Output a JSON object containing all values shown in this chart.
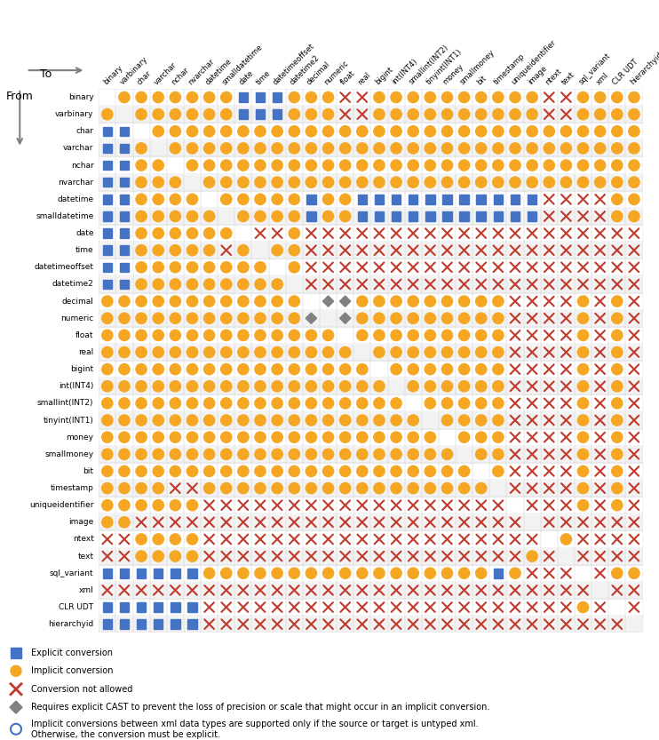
{
  "rows": [
    "binary",
    "varbinary",
    "char",
    "varchar",
    "nchar",
    "nvarchar",
    "datetime",
    "smalldatetime",
    "date",
    "time",
    "datetimeoffset",
    "datetime2",
    "decimal",
    "numeric",
    "float",
    "real",
    "bigint",
    "int(INT4)",
    "smallint(INT2)",
    "tinyint(INT1)",
    "money",
    "smallmoney",
    "bit",
    "timestamp",
    "uniqueidentifier",
    "image",
    "ntext",
    "text",
    "sql_variant",
    "xml",
    "CLR UDT",
    "hierarchyid"
  ],
  "cols": [
    "binary",
    "varbinary",
    "char",
    "varchar",
    "nchar",
    "nvarchar",
    "datetime",
    "smalldatetime",
    "date",
    "time",
    "datetimeoffset",
    "datetime2",
    "decimal",
    "numeric",
    "float",
    "real",
    "bigint",
    "int(INT4)",
    "smallint(INT2)",
    "tinyint(INT1)",
    "money",
    "smallmoney",
    "bit",
    "timestamp",
    "uniqueidentifier",
    "image",
    "ntext",
    "text",
    "sql_variant",
    "xml",
    "CLR UDT",
    "hierarchyid"
  ],
  "legend": {
    "explicit": "#4472C4",
    "implicit": "#F5A623",
    "not_allowed": "#C0392B",
    "cast": "#808080",
    "xml_special": "#4472C4"
  },
  "background": "#FFFFFF",
  "grid_color": "#CCCCCC",
  "row_label_color": "#000000",
  "header_bg": "#FFFFFF"
}
